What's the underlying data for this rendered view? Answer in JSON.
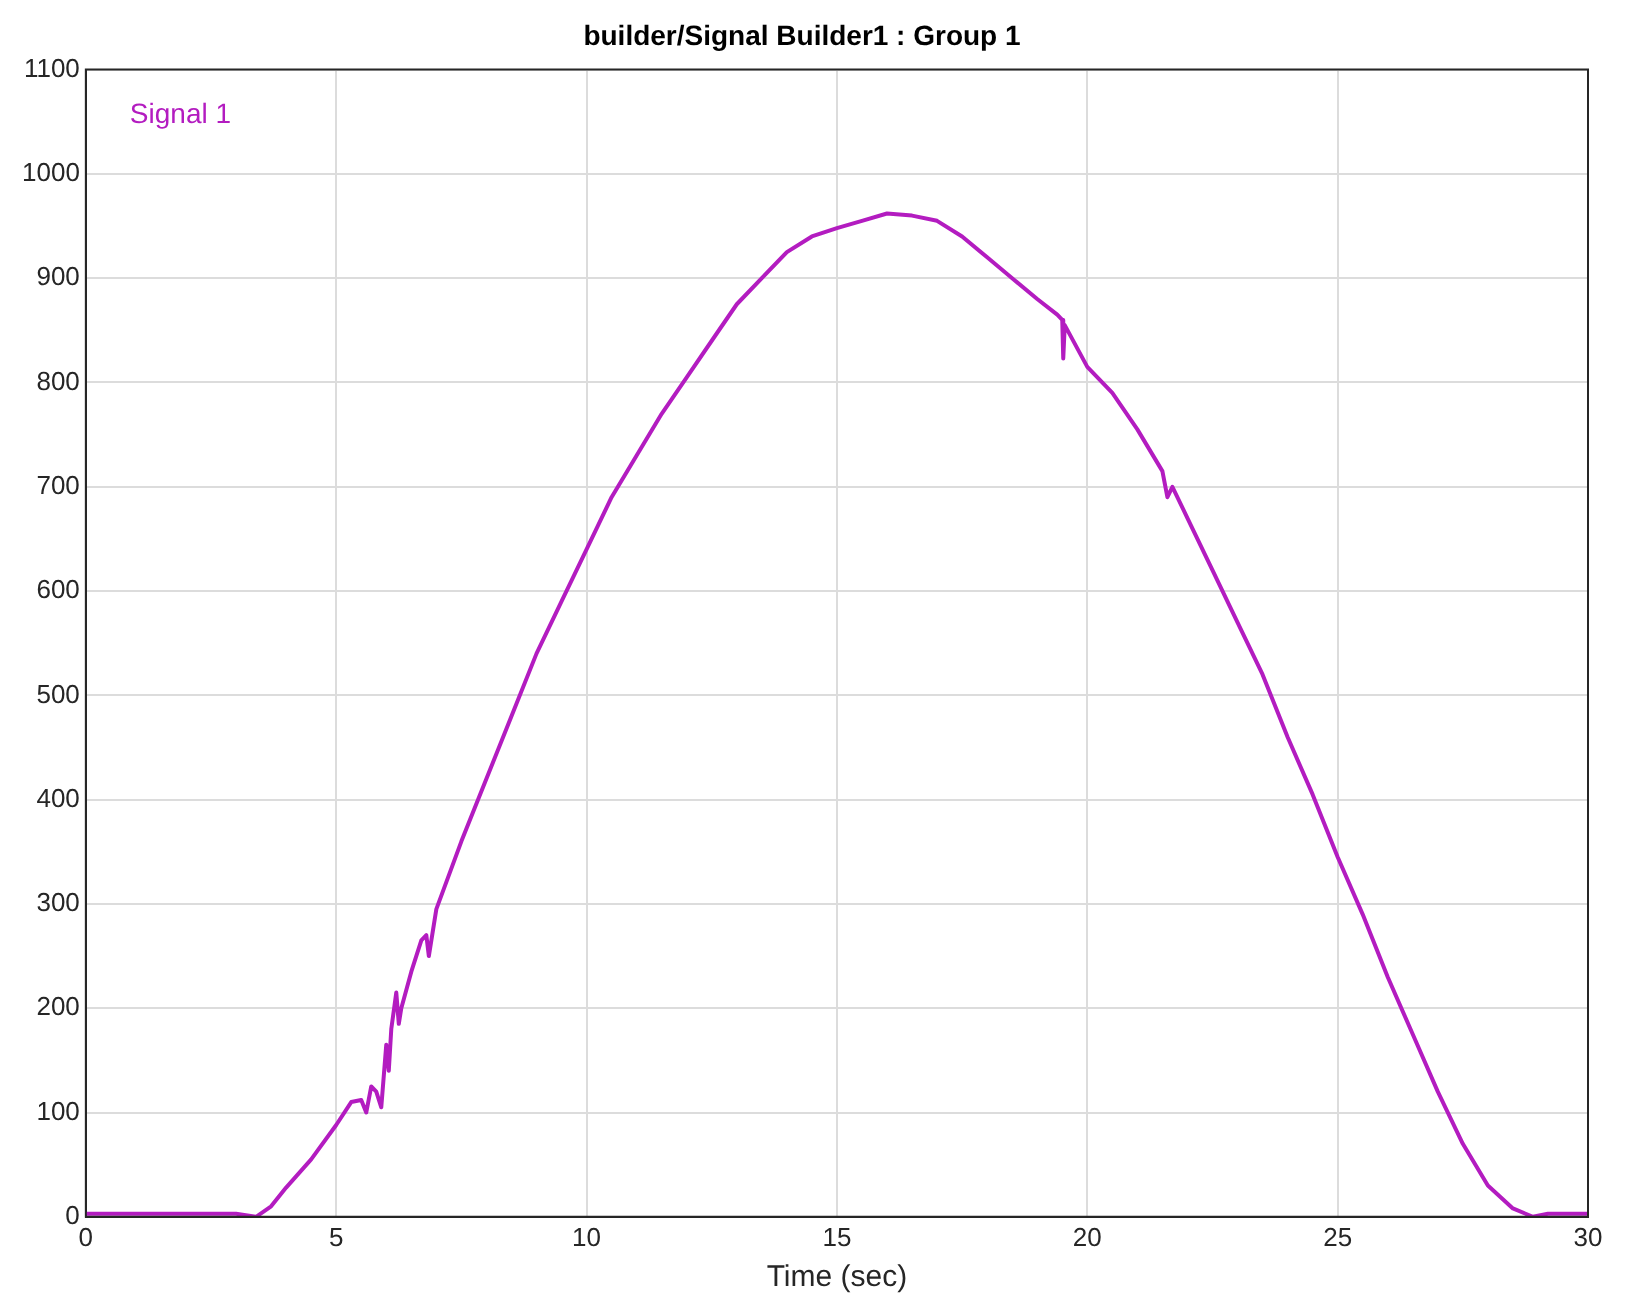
{
  "chart_data": {
    "type": "line",
    "title": "builder/Signal Builder1 : Group 1",
    "xlabel": "Time (sec)",
    "xlim": [
      0,
      30
    ],
    "xticks": [
      0,
      5,
      10,
      15,
      20,
      25,
      30
    ],
    "ylim": [
      0,
      1100
    ],
    "yticks": [
      0,
      100,
      200,
      300,
      400,
      500,
      600,
      700,
      800,
      900,
      1000,
      1100
    ],
    "grid": true,
    "legend": "top left",
    "marker": "none",
    "line_style": "solid",
    "series": [
      {
        "name": "Signal 1",
        "color": "#b31cc0",
        "x": [
          0,
          1,
          2,
          3,
          3.4,
          3.7,
          4,
          4.5,
          5,
          5.3,
          5.5,
          5.6,
          5.7,
          5.8,
          5.9,
          6,
          6.05,
          6.1,
          6.2,
          6.25,
          6.3,
          6.5,
          6.7,
          6.8,
          6.85,
          7,
          7.5,
          8,
          8.5,
          9,
          9.5,
          10,
          10.5,
          11,
          11.5,
          12,
          12.5,
          13,
          13.5,
          14,
          14.5,
          15,
          15.5,
          16,
          16.5,
          17,
          17.5,
          18,
          18.5,
          19,
          19.4,
          19.5,
          19.52,
          19.55,
          20,
          20.5,
          21,
          21.5,
          21.6,
          21.7,
          22,
          22.5,
          23,
          23.5,
          24,
          24.5,
          25,
          25.5,
          26,
          26.5,
          27,
          27.5,
          28,
          28.5,
          28.9,
          29.2,
          30
        ],
        "values": [
          3,
          3,
          3,
          3,
          0,
          10,
          28,
          55,
          88,
          110,
          112,
          100,
          125,
          120,
          105,
          165,
          140,
          180,
          215,
          185,
          200,
          235,
          265,
          270,
          250,
          295,
          360,
          420,
          480,
          540,
          590,
          640,
          690,
          730,
          770,
          805,
          840,
          875,
          900,
          925,
          940,
          948,
          955,
          962,
          960,
          955,
          940,
          920,
          900,
          880,
          865,
          860,
          823,
          855,
          815,
          790,
          755,
          715,
          690,
          700,
          670,
          620,
          570,
          520,
          460,
          405,
          345,
          290,
          230,
          175,
          120,
          70,
          30,
          8,
          0,
          3,
          3
        ]
      }
    ]
  }
}
